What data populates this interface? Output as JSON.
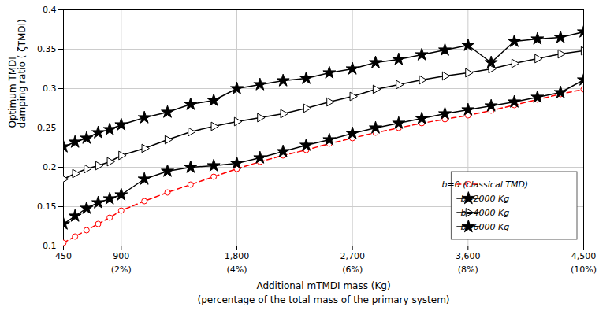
{
  "chart_data": {
    "type": "line",
    "xlabel": [
      "Additional mTMDI mass (Kg)",
      "(percentage of the total mass of the primary system)"
    ],
    "ylabel": [
      "Optimum TMDI",
      "damping ratio ( ζTMDI)"
    ],
    "xlim": [
      450,
      4500
    ],
    "ylim": [
      0.1,
      0.4
    ],
    "xticks": [
      450,
      900,
      {
        "value": 1800,
        "label": "1,800"
      },
      {
        "value": 2700,
        "label": "2,700"
      },
      {
        "value": 3600,
        "label": "3,600"
      },
      {
        "value": 4500,
        "label": "4,500"
      }
    ],
    "yticks": [
      0.1,
      0.15,
      0.2,
      0.25,
      0.3,
      0.35,
      0.4
    ],
    "annotations": [
      {
        "x": 900,
        "text": "(2%)"
      },
      {
        "x": 1800,
        "text": "(4%)"
      },
      {
        "x": 2700,
        "text": "(6%)"
      },
      {
        "x": 3600,
        "text": "(8%)"
      },
      {
        "x": 4500,
        "text": "(10%)"
      }
    ],
    "x": [
      450,
      540,
      630,
      720,
      810,
      900,
      1080,
      1260,
      1440,
      1620,
      1800,
      1980,
      2160,
      2340,
      2520,
      2700,
      2880,
      3060,
      3240,
      3420,
      3600,
      3780,
      3960,
      4140,
      4320,
      4500
    ],
    "series": [
      {
        "name": "b=0 (classical TMD)",
        "color": "red",
        "line_style": "dashed",
        "marker": "open-circle",
        "values": [
          0.104,
          0.112,
          0.12,
          0.128,
          0.136,
          0.145,
          0.157,
          0.168,
          0.178,
          0.188,
          0.198,
          0.207,
          0.215,
          0.222,
          0.23,
          0.237,
          0.244,
          0.25,
          0.256,
          0.261,
          0.266,
          0.272,
          0.279,
          0.286,
          0.293,
          0.299
        ]
      },
      {
        "name": "b=2000 Kg",
        "color": "black",
        "line_style": "solid",
        "marker": "star",
        "values": [
          0.128,
          0.138,
          0.148,
          0.155,
          0.16,
          0.165,
          0.185,
          0.195,
          0.2,
          0.202,
          0.205,
          0.212,
          0.22,
          0.228,
          0.235,
          0.243,
          0.25,
          0.256,
          0.262,
          0.268,
          0.273,
          0.278,
          0.283,
          0.289,
          0.295,
          0.311
        ]
      },
      {
        "name": "b=4000 Kg",
        "color": "black",
        "line_style": "solid",
        "marker": "open-triangle-right",
        "values": [
          0.185,
          0.192,
          0.198,
          0.202,
          0.207,
          0.215,
          0.224,
          0.235,
          0.245,
          0.252,
          0.258,
          0.263,
          0.268,
          0.275,
          0.283,
          0.29,
          0.299,
          0.305,
          0.311,
          0.316,
          0.32,
          0.325,
          0.332,
          0.338,
          0.344,
          0.348
        ]
      },
      {
        "name": "b=6000 Kg",
        "color": "black",
        "line_style": "solid",
        "marker": "star",
        "values": [
          0.226,
          0.232,
          0.237,
          0.244,
          0.248,
          0.254,
          0.263,
          0.27,
          0.28,
          0.285,
          0.3,
          0.305,
          0.31,
          0.313,
          0.32,
          0.325,
          0.333,
          0.337,
          0.343,
          0.349,
          0.355,
          0.333,
          0.36,
          0.363,
          0.365,
          0.372
        ]
      }
    ],
    "grid": true,
    "legend": "lower right"
  }
}
